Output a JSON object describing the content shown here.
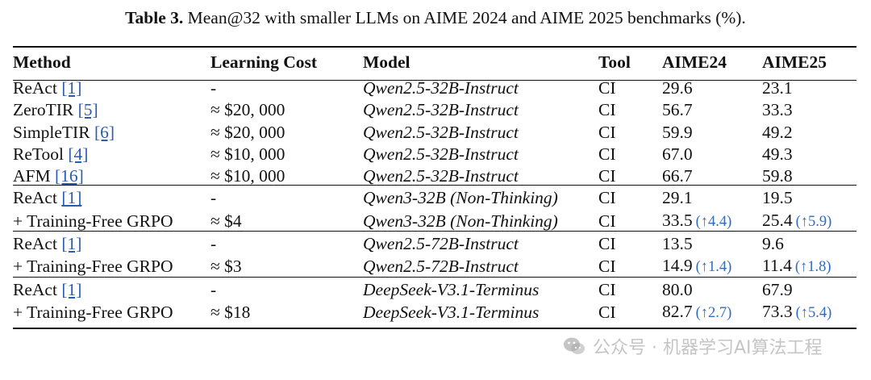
{
  "caption": {
    "label": "Table 3.",
    "text": "Mean@32 with smaller LLMs on AIME 2024 and AIME 2025 benchmarks (%)."
  },
  "columns": [
    "Method",
    "Learning Cost",
    "Model",
    "Tool",
    "AIME24",
    "AIME25"
  ],
  "groups": [
    {
      "rows": [
        {
          "method": "ReAct",
          "ref": "[1]",
          "cost": "-",
          "model": "Qwen2.5-32B-Instruct",
          "tool": "CI",
          "aime24": "29.6",
          "aime24_delta": "",
          "aime25": "23.1",
          "aime25_delta": ""
        },
        {
          "method": "ZeroTIR",
          "ref": "[5]",
          "cost": "≈ $20, 000",
          "model": "Qwen2.5-32B-Instruct",
          "tool": "CI",
          "aime24": "56.7",
          "aime24_delta": "",
          "aime25": "33.3",
          "aime25_delta": ""
        },
        {
          "method": "SimpleTIR",
          "ref": "[6]",
          "cost": "≈ $20, 000",
          "model": "Qwen2.5-32B-Instruct",
          "tool": "CI",
          "aime24": "59.9",
          "aime24_delta": "",
          "aime25": "49.2",
          "aime25_delta": ""
        },
        {
          "method": "ReTool",
          "ref": "[4]",
          "cost": "≈ $10, 000",
          "model": "Qwen2.5-32B-Instruct",
          "tool": "CI",
          "aime24": "67.0",
          "aime24_delta": "",
          "aime25": "49.3",
          "aime25_delta": ""
        },
        {
          "method": "AFM",
          "ref": "[16]",
          "cost": "≈ $10, 000",
          "model": "Qwen2.5-32B-Instruct",
          "tool": "CI",
          "aime24": "66.7",
          "aime24_delta": "",
          "aime25": "59.8",
          "aime25_delta": ""
        }
      ]
    },
    {
      "rows": [
        {
          "method": "ReAct",
          "ref": "[1]",
          "cost": "-",
          "model": "Qwen3-32B (Non-Thinking)",
          "tool": "CI",
          "aime24": "29.1",
          "aime24_delta": "",
          "aime25": "19.5",
          "aime25_delta": ""
        },
        {
          "method": "+ Training-Free GRPO",
          "ref": "",
          "cost": "≈ $4",
          "model": "Qwen3-32B (Non-Thinking)",
          "tool": "CI",
          "aime24": "33.5",
          "aime24_delta": "(↑4.4)",
          "aime25": "25.4",
          "aime25_delta": "(↑5.9)"
        }
      ]
    },
    {
      "rows": [
        {
          "method": "ReAct",
          "ref": "[1]",
          "cost": "-",
          "model": "Qwen2.5-72B-Instruct",
          "tool": "CI",
          "aime24": "13.5",
          "aime24_delta": "",
          "aime25": "9.6",
          "aime25_delta": ""
        },
        {
          "method": "+ Training-Free GRPO",
          "ref": "",
          "cost": "≈ $3",
          "model": "Qwen2.5-72B-Instruct",
          "tool": "CI",
          "aime24": "14.9",
          "aime24_delta": "(↑1.4)",
          "aime25": "11.4",
          "aime25_delta": "(↑1.8)"
        }
      ]
    },
    {
      "rows": [
        {
          "method": "ReAct",
          "ref": "[1]",
          "cost": "-",
          "model": "DeepSeek-V3.1-Terminus",
          "tool": "CI",
          "aime24": "80.0",
          "aime24_delta": "",
          "aime25": "67.9",
          "aime25_delta": ""
        },
        {
          "method": "+ Training-Free GRPO",
          "ref": "",
          "cost": "≈ $18",
          "model": "DeepSeek-V3.1-Terminus",
          "tool": "CI",
          "aime24": "82.7",
          "aime24_delta": "(↑2.7)",
          "aime25": "73.3",
          "aime25_delta": "(↑5.4)"
        }
      ]
    }
  ],
  "watermark": {
    "text": "公众号 · 机器学习AI算法工程",
    "icon": "wechat-icon"
  }
}
